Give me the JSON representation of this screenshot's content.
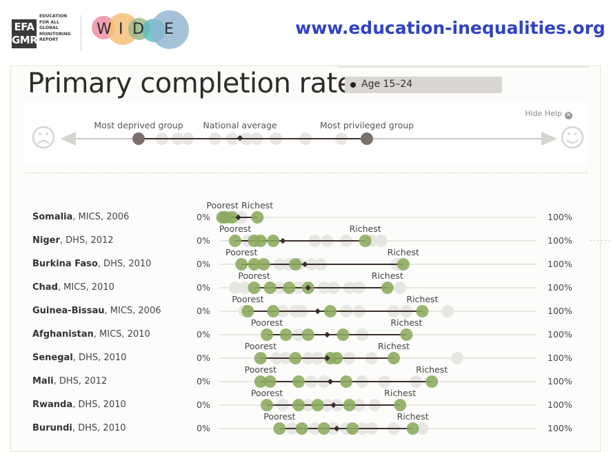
{
  "header": {
    "efa_logo_lines": [
      "EFA",
      "GMR"
    ],
    "efa_sub_lines": [
      "Education",
      "for all",
      "global",
      "monitoring",
      "report"
    ],
    "wide_letters": [
      "W",
      "I",
      "D",
      "E"
    ],
    "url": "www.education-inequalities.org"
  },
  "title": "Primary completion rate",
  "age_filter": "Age 15–24",
  "help": {
    "hide_label": "Hide Help",
    "most_deprived": "Most deprived group",
    "national_average": "National average",
    "most_privileged": "Most privileged group"
  },
  "colors": {
    "group_dot": "#8aaa5c",
    "faded_dot": "#e6e6e3",
    "help_dot": "#7a6f6b",
    "line": "#3a2e2a",
    "url": "#2f43c3"
  },
  "chart_data": {
    "type": "scatter",
    "title": "Primary completion rate",
    "xlim": [
      0,
      100
    ],
    "axis_left_label": "0%",
    "axis_right_label": "100%",
    "poorest_label": "Poorest",
    "richest_label": "Richest",
    "rows": [
      {
        "country": "Somalia",
        "survey": "MICS, 2006",
        "poorest": 1,
        "richest": 12,
        "average": 6,
        "groups": [
          1,
          2,
          4,
          12
        ],
        "faded": [
          3,
          5,
          7
        ]
      },
      {
        "country": "Niger",
        "survey": "DHS, 2012",
        "poorest": 5,
        "richest": 46,
        "average": 20,
        "groups": [
          5,
          11,
          13,
          17,
          46
        ],
        "faded": [
          9,
          30,
          34,
          40,
          48,
          51
        ]
      },
      {
        "country": "Burkina Faso",
        "survey": "DHS, 2010",
        "poorest": 7,
        "richest": 58,
        "average": 27,
        "groups": [
          7,
          11,
          14,
          24,
          58
        ],
        "faded": [
          19,
          22,
          25,
          29,
          32,
          56
        ]
      },
      {
        "country": "Chad",
        "survey": "MICS, 2010",
        "poorest": 11,
        "richest": 53,
        "average": 28,
        "groups": [
          11,
          16,
          22,
          28,
          53
        ],
        "faded": [
          5,
          8,
          19,
          25,
          33,
          36,
          41,
          44,
          57
        ]
      },
      {
        "country": "Guinea-Bissau",
        "survey": "MICS, 2006",
        "poorest": 9,
        "richest": 64,
        "average": 31,
        "groups": [
          9,
          17,
          35,
          64
        ],
        "faded": [
          8,
          20,
          24,
          26,
          40,
          44,
          55,
          59,
          72
        ]
      },
      {
        "country": "Afghanistan",
        "survey": "MICS, 2010",
        "poorest": 15,
        "richest": 59,
        "average": 34,
        "groups": [
          15,
          21,
          28,
          39,
          59
        ],
        "faded": [
          25,
          45
        ]
      },
      {
        "country": "Senegal",
        "survey": "DHS, 2010",
        "poorest": 13,
        "richest": 55,
        "average": 34,
        "groups": [
          13,
          24,
          35,
          37,
          55
        ],
        "faded": [
          18,
          21,
          28,
          31,
          41,
          48,
          75
        ]
      },
      {
        "country": "Mali",
        "survey": "DHS, 2012",
        "poorest": 13,
        "richest": 67,
        "average": 35,
        "groups": [
          13,
          16,
          25,
          40,
          67
        ],
        "faded": [
          29,
          33,
          45,
          52,
          62
        ]
      },
      {
        "country": "Rwanda",
        "survey": "DHS, 2010",
        "poorest": 15,
        "richest": 57,
        "average": 36,
        "groups": [
          15,
          25,
          31,
          41,
          57
        ],
        "faded": [
          20,
          28,
          34,
          37,
          44,
          49
        ]
      },
      {
        "country": "Burundi",
        "survey": "DHS, 2010",
        "poorest": 19,
        "richest": 61,
        "average": 37,
        "groups": [
          19,
          26,
          33,
          42,
          61
        ],
        "faded": [
          23,
          30,
          36,
          40,
          45,
          48,
          55,
          64
        ]
      }
    ]
  }
}
